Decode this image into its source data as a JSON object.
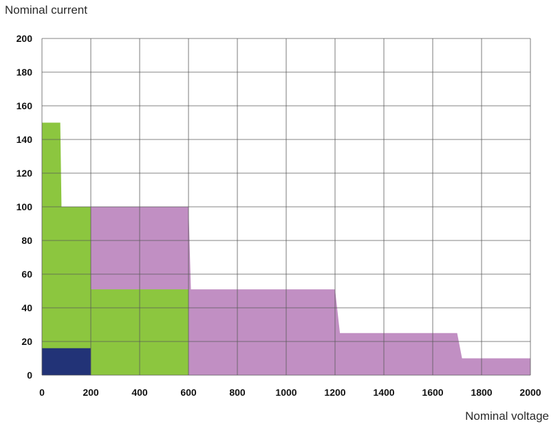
{
  "chart_data": {
    "type": "area",
    "title": "",
    "xlabel": "Nominal voltage",
    "ylabel": "Nominal current",
    "xlim": [
      0,
      2000
    ],
    "ylim": [
      0,
      200
    ],
    "x_ticks": [
      0,
      200,
      400,
      600,
      800,
      1000,
      1200,
      1400,
      1600,
      1800,
      2000
    ],
    "y_ticks": [
      0,
      20,
      40,
      60,
      80,
      100,
      120,
      140,
      160,
      180,
      200
    ],
    "grid": true,
    "legend": "none",
    "series": [
      {
        "color": "#c18fc3",
        "points": [
          [
            0,
            0
          ],
          [
            0,
            100
          ],
          [
            600,
            100
          ],
          [
            610,
            51
          ],
          [
            1200,
            51
          ],
          [
            1220,
            25
          ],
          [
            1700,
            25
          ],
          [
            1720,
            10
          ],
          [
            2000,
            10
          ],
          [
            2000,
            0
          ]
        ]
      },
      {
        "color": "#8cc63f",
        "points": [
          [
            0,
            0
          ],
          [
            0,
            150
          ],
          [
            75,
            150
          ],
          [
            80,
            100
          ],
          [
            200,
            100
          ],
          [
            200,
            51
          ],
          [
            600,
            51
          ],
          [
            600,
            0
          ]
        ]
      },
      {
        "color": "#223377",
        "points": [
          [
            0,
            0
          ],
          [
            0,
            16
          ],
          [
            200,
            16
          ],
          [
            200,
            0
          ]
        ]
      }
    ]
  }
}
